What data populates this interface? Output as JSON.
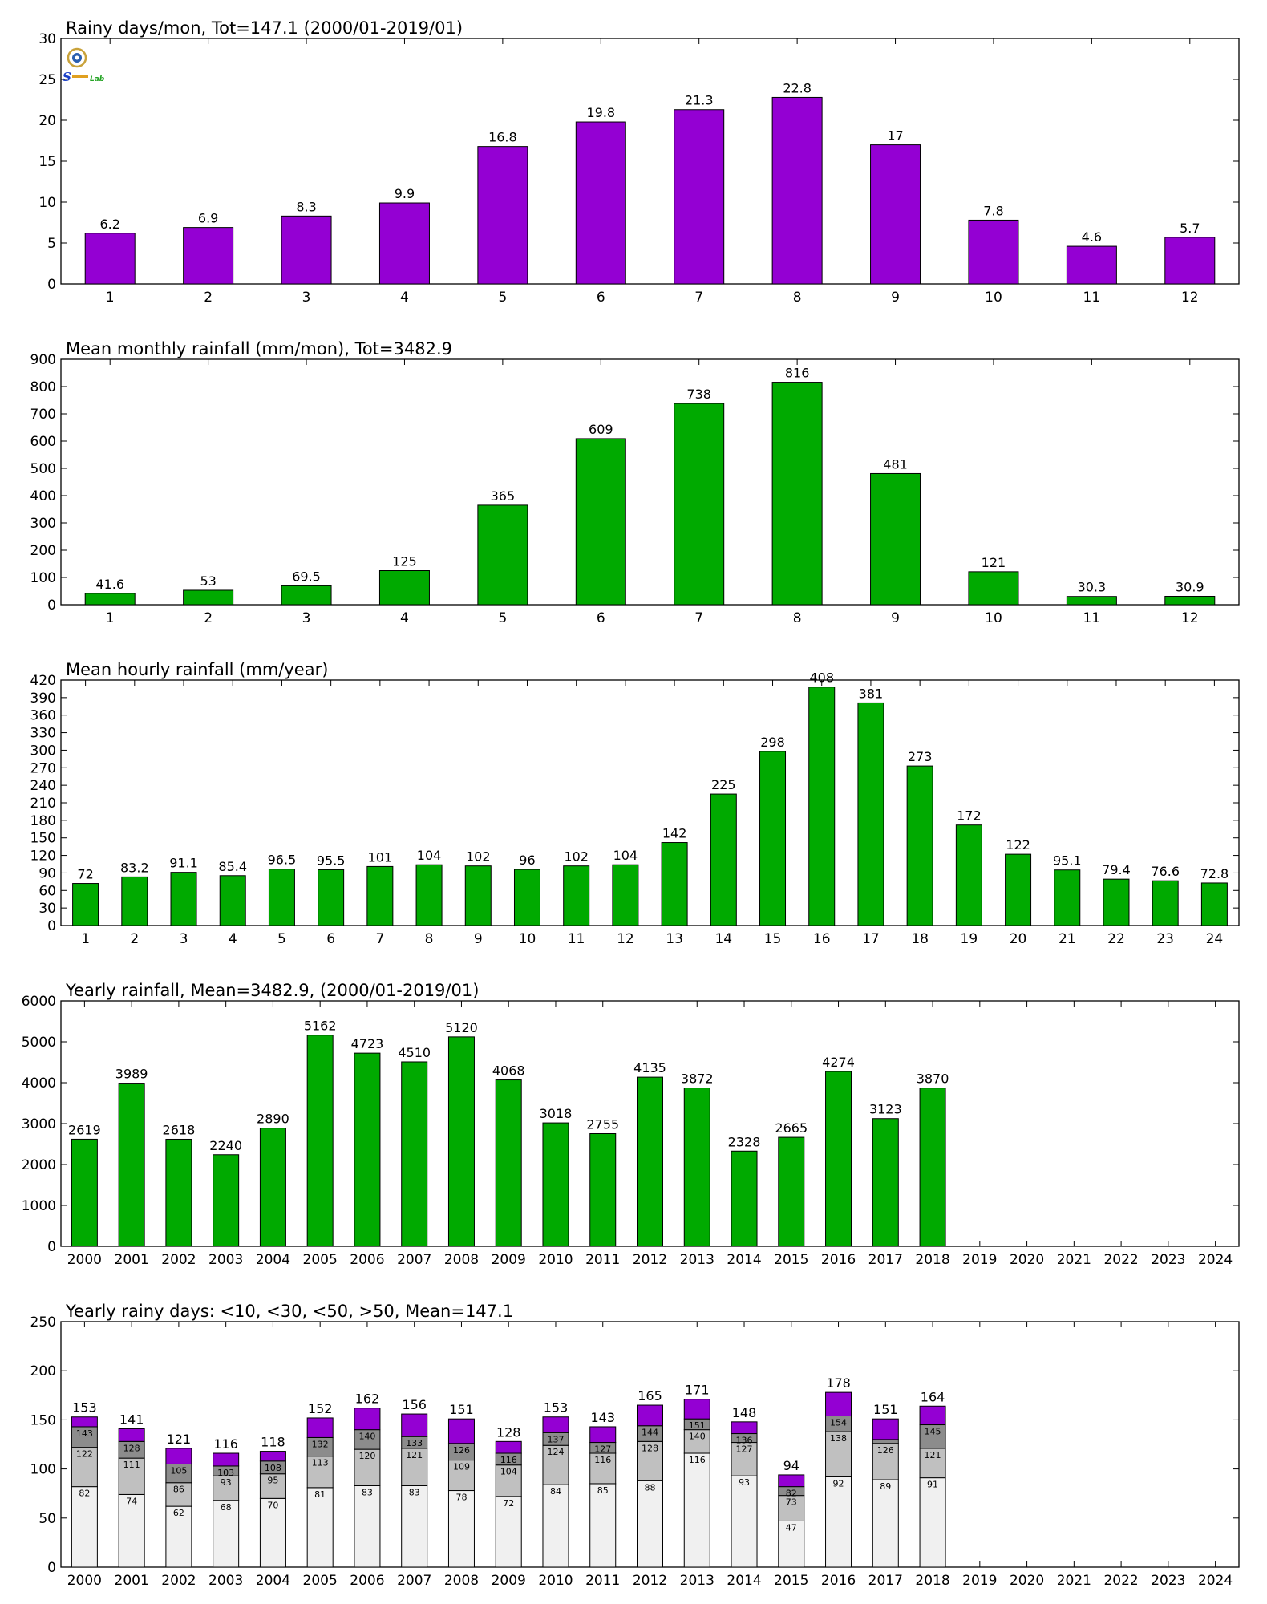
{
  "logo": {
    "text": "Lab"
  },
  "chart_data": [
    {
      "type": "bar",
      "title": "Rainy days/mon, Tot=147.1 (2000/01-2019/01)",
      "color": "#9400d3",
      "ylim": [
        0,
        30
      ],
      "yticks": [
        0,
        5,
        10,
        15,
        20,
        25,
        30
      ],
      "categories": [
        "1",
        "2",
        "3",
        "4",
        "5",
        "6",
        "7",
        "8",
        "9",
        "10",
        "11",
        "12"
      ],
      "values": [
        6.2,
        6.9,
        8.3,
        9.9,
        16.8,
        19.8,
        21.3,
        22.8,
        17,
        7.8,
        4.6,
        5.7
      ],
      "labels": [
        "6.2",
        "6.9",
        "8.3",
        "9.9",
        "16.8",
        "19.8",
        "21.3",
        "22.8",
        "17",
        "7.8",
        "4.6",
        "5.7"
      ]
    },
    {
      "type": "bar",
      "title": "Mean monthly rainfall (mm/mon), Tot=3482.9",
      "color": "#00aa00",
      "ylim": [
        0,
        900
      ],
      "yticks": [
        0,
        100,
        200,
        300,
        400,
        500,
        600,
        700,
        800,
        900
      ],
      "categories": [
        "1",
        "2",
        "3",
        "4",
        "5",
        "6",
        "7",
        "8",
        "9",
        "10",
        "11",
        "12"
      ],
      "values": [
        41.6,
        53,
        69.5,
        125,
        365,
        609,
        738,
        816,
        481,
        121,
        30.3,
        30.9
      ],
      "labels": [
        "41.6",
        "53",
        "69.5",
        "125",
        "365",
        "609",
        "738",
        "816",
        "481",
        "121",
        "30.3",
        "30.9"
      ]
    },
    {
      "type": "bar",
      "title": "Mean hourly rainfall (mm/year)",
      "color": "#00aa00",
      "ylim": [
        0,
        420
      ],
      "yticks": [
        0,
        30,
        60,
        90,
        120,
        150,
        180,
        210,
        240,
        270,
        300,
        330,
        360,
        390,
        420
      ],
      "categories": [
        "1",
        "2",
        "3",
        "4",
        "5",
        "6",
        "7",
        "8",
        "9",
        "10",
        "11",
        "12",
        "13",
        "14",
        "15",
        "16",
        "17",
        "18",
        "19",
        "20",
        "21",
        "22",
        "23",
        "24"
      ],
      "values": [
        72,
        83.2,
        91.1,
        85.4,
        96.5,
        95.5,
        101,
        104,
        102,
        96,
        102,
        104,
        142,
        225,
        298,
        408,
        381,
        273,
        172,
        122,
        95.1,
        79.4,
        76.6,
        72.8
      ],
      "labels": [
        "72",
        "83.2",
        "91.1",
        "85.4",
        "96.5",
        "95.5",
        "101",
        "104",
        "102",
        "96",
        "102",
        "104",
        "142",
        "225",
        "298",
        "408",
        "381",
        "273",
        "172",
        "122",
        "95.1",
        "79.4",
        "76.6",
        "72.8"
      ]
    },
    {
      "type": "bar",
      "title": "Yearly rainfall, Mean=3482.9, (2000/01-2019/01)",
      "color": "#00aa00",
      "ylim": [
        0,
        6000
      ],
      "yticks": [
        0,
        1000,
        2000,
        3000,
        4000,
        5000,
        6000
      ],
      "categories": [
        "2000",
        "2001",
        "2002",
        "2003",
        "2004",
        "2005",
        "2006",
        "2007",
        "2008",
        "2009",
        "2010",
        "2011",
        "2012",
        "2013",
        "2014",
        "2015",
        "2016",
        "2017",
        "2018",
        "2019",
        "2020",
        "2021",
        "2022",
        "2023",
        "2024"
      ],
      "values": [
        2619,
        3989,
        2618,
        2240,
        2890,
        5162,
        4723,
        4510,
        5120,
        4068,
        3018,
        2755,
        4135,
        3872,
        2328,
        2665,
        4274,
        3123,
        3870,
        null,
        null,
        null,
        null,
        null,
        null
      ],
      "labels": [
        "2619",
        "3989",
        "2618",
        "2240",
        "2890",
        "5162",
        "4723",
        "4510",
        "5120",
        "4068",
        "3018",
        "2755",
        "4135",
        "3872",
        "2328",
        "2665",
        "4274",
        "3123",
        "3870",
        "",
        "",
        "",
        "",
        "",
        ""
      ]
    },
    {
      "type": "stacked-bar",
      "title": "Yearly rainy days: <10, <30, <50, >50, Mean=147.1",
      "ylim": [
        0,
        250
      ],
      "yticks": [
        0,
        50,
        100,
        150,
        200,
        250
      ],
      "categories": [
        "2000",
        "2001",
        "2002",
        "2003",
        "2004",
        "2005",
        "2006",
        "2007",
        "2008",
        "2009",
        "2010",
        "2011",
        "2012",
        "2013",
        "2014",
        "2015",
        "2016",
        "2017",
        "2018",
        "2019",
        "2020",
        "2021",
        "2022",
        "2023",
        "2024"
      ],
      "colors": [
        "#f0f0f0",
        "#c0c0c0",
        "#8c8c8c",
        "#9400d3"
      ],
      "cumulative": [
        [
          82,
          122,
          143,
          153
        ],
        [
          74,
          111,
          128,
          141
        ],
        [
          62,
          86,
          105,
          121
        ],
        [
          68,
          93,
          103,
          116
        ],
        [
          70,
          95,
          108,
          118
        ],
        [
          81,
          113,
          132,
          152
        ],
        [
          83,
          120,
          140,
          162
        ],
        [
          83,
          121,
          133,
          156
        ],
        [
          78,
          109,
          126,
          151
        ],
        [
          72,
          104,
          116,
          128
        ],
        [
          84,
          124,
          137,
          153
        ],
        [
          85,
          116,
          127,
          143
        ],
        [
          88,
          128,
          144,
          165
        ],
        [
          116,
          140,
          151,
          171
        ],
        [
          93,
          127,
          136,
          148
        ],
        [
          47,
          73,
          82,
          94
        ],
        [
          92,
          138,
          154,
          178
        ],
        [
          89,
          126,
          130,
          151
        ],
        [
          91,
          121,
          145,
          164
        ],
        null,
        null,
        null,
        null,
        null,
        null
      ],
      "inner_labels": [
        [
          "82",
          "122",
          "143"
        ],
        [
          "74",
          "111",
          "128"
        ],
        [
          "62",
          "86",
          "105"
        ],
        [
          "68",
          "93",
          "103"
        ],
        [
          "70",
          "95",
          "108"
        ],
        [
          "81",
          "113",
          "132"
        ],
        [
          "83",
          "120",
          "140"
        ],
        [
          "83",
          "121",
          "133"
        ],
        [
          "78",
          "109",
          "126"
        ],
        [
          "72",
          "104",
          "116"
        ],
        [
          "84",
          "124",
          "137"
        ],
        [
          "85",
          "116",
          "127"
        ],
        [
          "88",
          "128",
          "144"
        ],
        [
          "116",
          "140",
          "151"
        ],
        [
          "93",
          "127",
          "136"
        ],
        [
          "47",
          "73",
          "82"
        ],
        [
          "92",
          "138",
          "154"
        ],
        [
          "89",
          "126",
          ""
        ],
        [
          "91",
          "121",
          "145"
        ],
        null,
        null,
        null,
        null,
        null,
        null
      ],
      "total_labels": [
        "153",
        "141",
        "121",
        "116",
        "118",
        "152",
        "162",
        "156",
        "151",
        "128",
        "153",
        "143",
        "165",
        "171",
        "148",
        "94",
        "178",
        "151",
        "164",
        "",
        "",
        "",
        "",
        "",
        ""
      ]
    }
  ]
}
